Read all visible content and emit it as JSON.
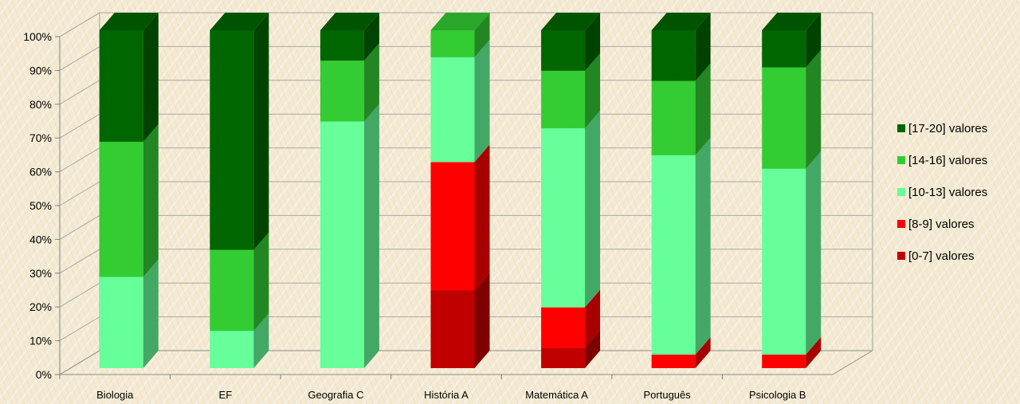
{
  "chart_data": {
    "type": "bar",
    "stacked": true,
    "percent": true,
    "three_d": true,
    "categories": [
      "Biologia",
      "EF",
      "Geografia C",
      "História A",
      "Matemática A",
      "Português",
      "Psicologia B"
    ],
    "series": [
      {
        "name": "[0-7] valores",
        "color": "#c00000",
        "values": [
          0,
          0,
          0,
          23,
          6,
          0,
          0
        ]
      },
      {
        "name": "[8-9] valores",
        "color": "#ff0000",
        "values": [
          0,
          0,
          0,
          38,
          12,
          4,
          4
        ]
      },
      {
        "name": "[10-13] valores",
        "color": "#66ff99",
        "values": [
          27,
          11,
          73,
          31,
          53,
          59,
          55
        ]
      },
      {
        "name": "[14-16] valores",
        "color": "#33cc33",
        "values": [
          40,
          24,
          18,
          8,
          17,
          22,
          30
        ]
      },
      {
        "name": "[17-20] valores",
        "color": "#006600",
        "values": [
          33,
          65,
          9,
          0,
          12,
          15,
          11
        ]
      }
    ],
    "ylim": [
      0,
      100
    ],
    "yticks": [
      "0%",
      "10%",
      "20%",
      "30%",
      "40%",
      "50%",
      "60%",
      "70%",
      "80%",
      "90%",
      "100%"
    ],
    "legend_position": "right",
    "legend_order": [
      "[17-20] valores",
      "[14-16] valores",
      "[10-13] valores",
      "[8-9] valores",
      "[0-7] valores"
    ],
    "grid": true,
    "title": "",
    "xlabel": "",
    "ylabel": ""
  }
}
